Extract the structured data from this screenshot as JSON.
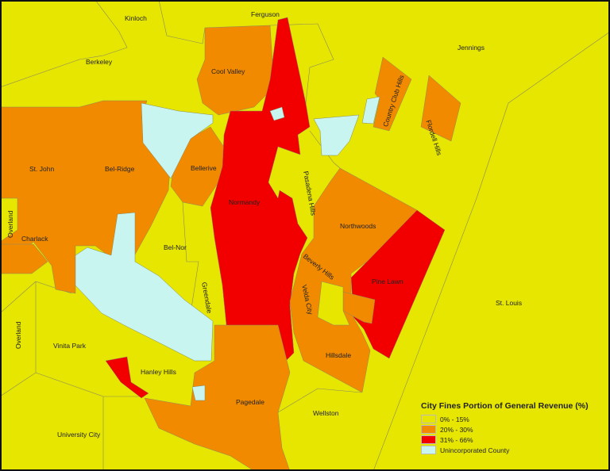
{
  "colors": {
    "low": "#e6e600",
    "mid": "#f28a00",
    "high": "#f20000",
    "unincorporated": "#c8f5ef"
  },
  "labels": {
    "kinloch": "Kinloch",
    "ferguson": "Ferguson",
    "jennings": "Jennings",
    "berkeley": "Berkeley",
    "cool_valley": "Cool Valley",
    "country_club_hills": "Country Club Hills",
    "flordell_hills": "Flordell Hills",
    "st_john": "St. John",
    "bel_ridge": "Bel-Ridge",
    "bellerive": "Bellerive",
    "normandy": "Normandy",
    "pasadena_hills": "Pasadena Hills",
    "overland_1": "Overland",
    "charlack": "Charlack",
    "bel_nor": "Bel-Nor",
    "northwoods": "Northwoods",
    "beverly_hills": "Beverly Hills",
    "pine_lawn": "Pine Lawn",
    "greendale": "Greendale",
    "velda_city": "Velda City",
    "st_louis": "St. Louis",
    "overland_2": "Overland",
    "vinita_park": "Vinita Park",
    "hillsdale": "Hillsdale",
    "hanley_hills": "Hanley Hills",
    "pagedale": "Pagedale",
    "wellston": "Wellston",
    "university_city": "University City"
  },
  "legend": {
    "title": "City Fines Portion of General Revenue (%)",
    "items": [
      {
        "label": "0% - 15%",
        "color": "#e6e600"
      },
      {
        "label": "20% - 30%",
        "color": "#f28a00"
      },
      {
        "label": "31% - 66%",
        "color": "#f20000"
      },
      {
        "label": "Unincorporated County",
        "color": "#c8f5ef"
      }
    ]
  }
}
